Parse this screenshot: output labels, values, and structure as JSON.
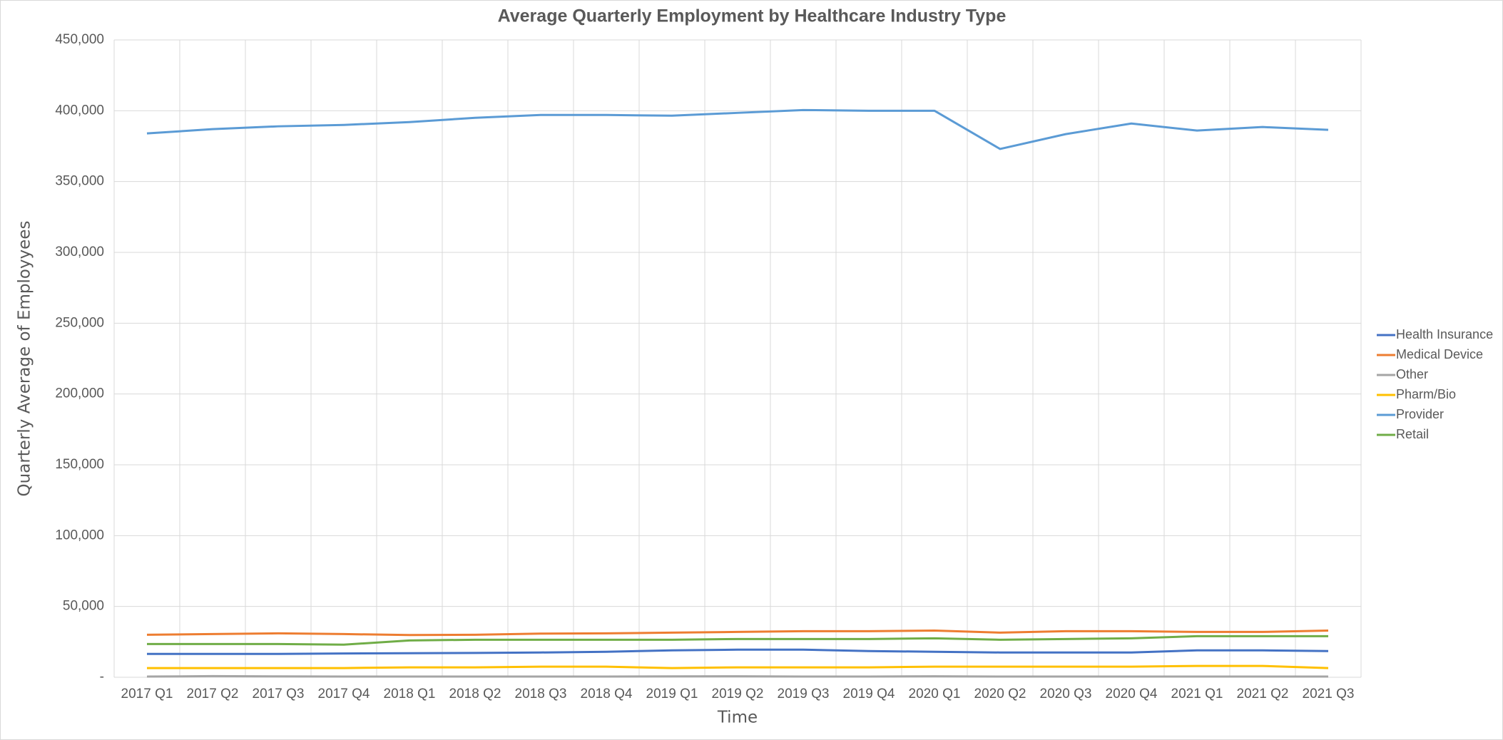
{
  "chart_data": {
    "type": "line",
    "title": "Average Quarterly Employment by Healthcare Industry Type",
    "x_label": "Time",
    "y_label": "Quarterly Average of Employyees",
    "categories": [
      "2017 Q1",
      "2017 Q2",
      "2017 Q3",
      "2017 Q4",
      "2018 Q1",
      "2018 Q2",
      "2018 Q3",
      "2018 Q4",
      "2019 Q1",
      "2019 Q2",
      "2019 Q3",
      "2019 Q4",
      "2020 Q1",
      "2020 Q2",
      "2020 Q3",
      "2020 Q4",
      "2021 Q1",
      "2021 Q2",
      "2021 Q3"
    ],
    "series": [
      {
        "name": "Health Insurance",
        "color": "#4472c4",
        "values": [
          16500,
          16500,
          16500,
          16800,
          17000,
          17200,
          17500,
          18000,
          19000,
          19500,
          19500,
          18500,
          18000,
          17500,
          17500,
          17500,
          19000,
          19000,
          18500
        ]
      },
      {
        "name": "Medical Device",
        "color": "#ed7d31",
        "values": [
          30000,
          30500,
          31000,
          30500,
          29800,
          30000,
          30800,
          31000,
          31500,
          32000,
          32500,
          32500,
          33000,
          31500,
          32500,
          32500,
          32000,
          32000,
          33000
        ]
      },
      {
        "name": "Other",
        "color": "#a5a5a5",
        "values": [
          500,
          800,
          600,
          500,
          500,
          500,
          500,
          500,
          600,
          700,
          500,
          500,
          700,
          500,
          500,
          500,
          500,
          500,
          500
        ]
      },
      {
        "name": "Pharm/Bio",
        "color": "#ffc000",
        "values": [
          6500,
          6500,
          6500,
          6500,
          7000,
          7000,
          7500,
          7500,
          6500,
          7000,
          7000,
          7000,
          7500,
          7500,
          7500,
          7500,
          8000,
          8000,
          6500
        ]
      },
      {
        "name": "Provider",
        "color": "#5b9bd5",
        "values": [
          384000,
          387000,
          389000,
          390000,
          392000,
          395000,
          397000,
          397000,
          396500,
          398500,
          400500,
          400000,
          400000,
          373000,
          383500,
          391000,
          386000,
          388500,
          386500
        ]
      },
      {
        "name": "Retail",
        "color": "#70ad47",
        "values": [
          23500,
          23500,
          23500,
          23000,
          26000,
          26500,
          26500,
          26500,
          26500,
          27000,
          27000,
          27000,
          27500,
          26500,
          27000,
          27500,
          29000,
          29000,
          29000
        ]
      }
    ],
    "ylim": [
      0,
      450000
    ],
    "yticks": [
      {
        "value": 0,
        "label": "-"
      },
      {
        "value": 50000,
        "label": "50,000"
      },
      {
        "value": 100000,
        "label": "100,000"
      },
      {
        "value": 150000,
        "label": "150,000"
      },
      {
        "value": 200000,
        "label": "200,000"
      },
      {
        "value": 250000,
        "label": "250,000"
      },
      {
        "value": 300000,
        "label": "300,000"
      },
      {
        "value": 350000,
        "label": "350,000"
      },
      {
        "value": 400000,
        "label": "400,000"
      },
      {
        "value": 450000,
        "label": "450,000"
      }
    ],
    "grid": true,
    "legend": "right"
  }
}
